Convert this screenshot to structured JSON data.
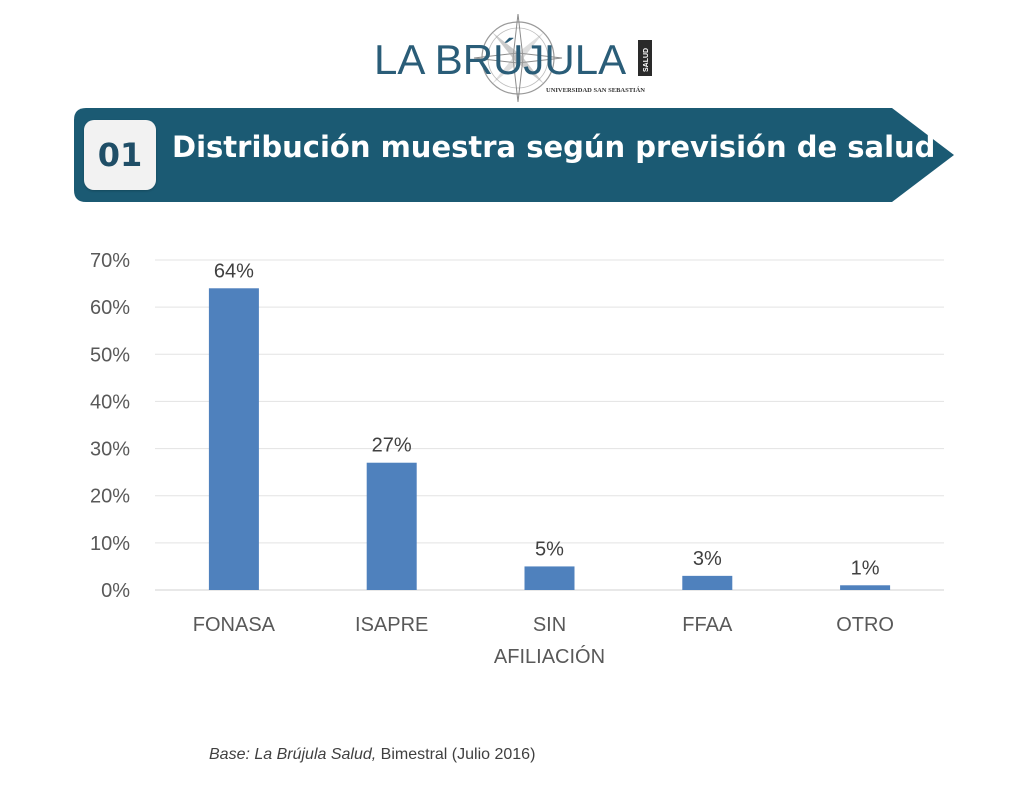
{
  "logo": {
    "brand_text": "LA BRÚJULA",
    "sub_text": "UNIVERSIDAD SAN SEBASTIÁN",
    "side_text": "SALUD"
  },
  "banner": {
    "number": "01",
    "title": "Distribución muestra según previsión de salud",
    "colors": {
      "background": "#1b5a73",
      "number": "#1f4e67"
    }
  },
  "chart_data": {
    "type": "bar",
    "categories": [
      "FONASA",
      "ISAPRE",
      "SIN AFILIACIÓN",
      "FFAA",
      "OTRO"
    ],
    "category_lines": [
      [
        "FONASA"
      ],
      [
        "ISAPRE"
      ],
      [
        "SIN",
        "AFILIACIÓN"
      ],
      [
        "FFAA"
      ],
      [
        "OTRO"
      ]
    ],
    "values": [
      64,
      27,
      5,
      3,
      1
    ],
    "data_labels": [
      "64%",
      "27%",
      "5%",
      "3%",
      "1%"
    ],
    "ylim": [
      0,
      70
    ],
    "y_ticks": [
      0,
      10,
      20,
      30,
      40,
      50,
      60,
      70
    ],
    "y_tick_labels": [
      "0%",
      "10%",
      "20%",
      "30%",
      "40%",
      "50%",
      "60%",
      "70%"
    ],
    "grid": true,
    "bar_color": "#4f81bd",
    "title": "",
    "xlabel": "",
    "ylabel": ""
  },
  "footnote": {
    "prefix": "Base: La Brújula Salud,",
    "suffix": " Bimestral (Julio 2016)"
  }
}
